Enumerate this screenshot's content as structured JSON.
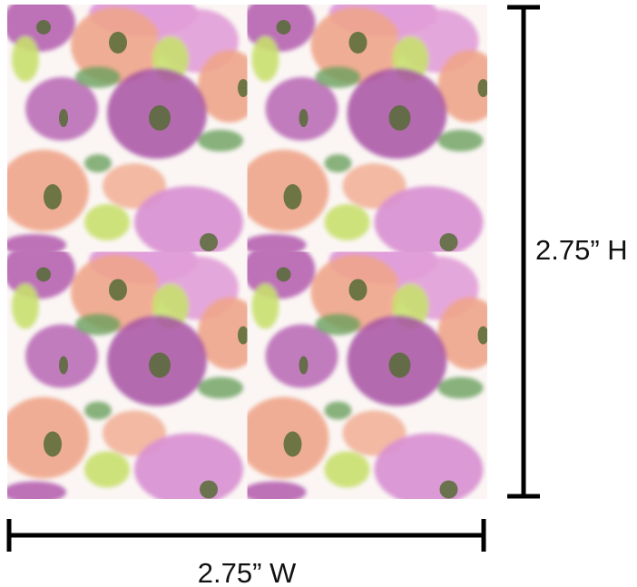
{
  "dimensions": {
    "height_label": "2.75” H",
    "width_label": "2.75” W"
  }
}
